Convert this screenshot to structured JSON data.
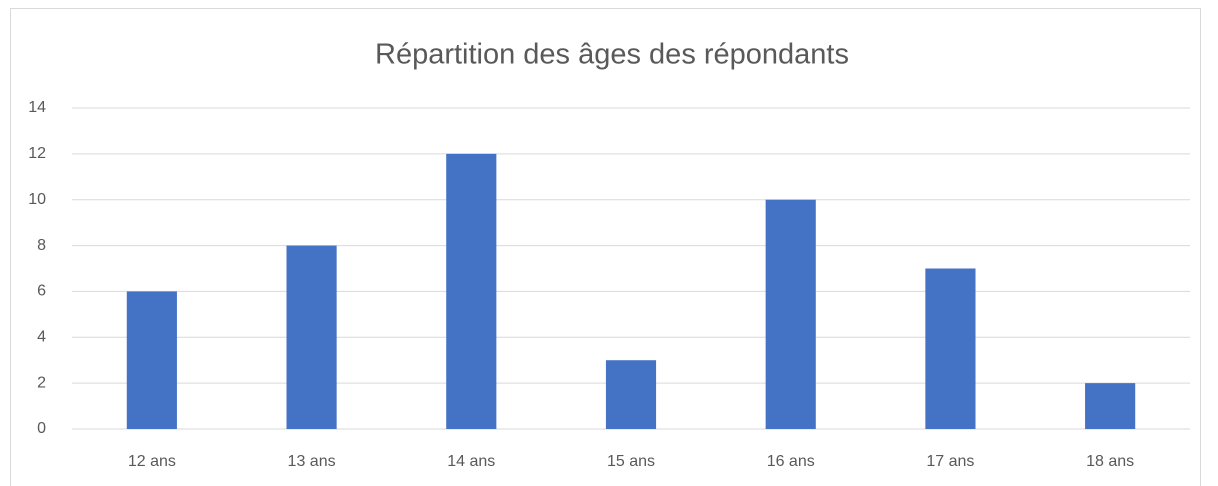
{
  "chart_data": {
    "type": "bar",
    "title": "Répartition des âges des répondants",
    "categories": [
      "12 ans",
      "13 ans",
      "14 ans",
      "15 ans",
      "16 ans",
      "17 ans",
      "18 ans"
    ],
    "values": [
      6,
      8,
      12,
      3,
      10,
      7,
      2
    ],
    "color": "#4472c4",
    "ylim": [
      0,
      14
    ],
    "yticks": [
      0,
      2,
      4,
      6,
      8,
      10,
      12,
      14
    ],
    "grid": true
  }
}
